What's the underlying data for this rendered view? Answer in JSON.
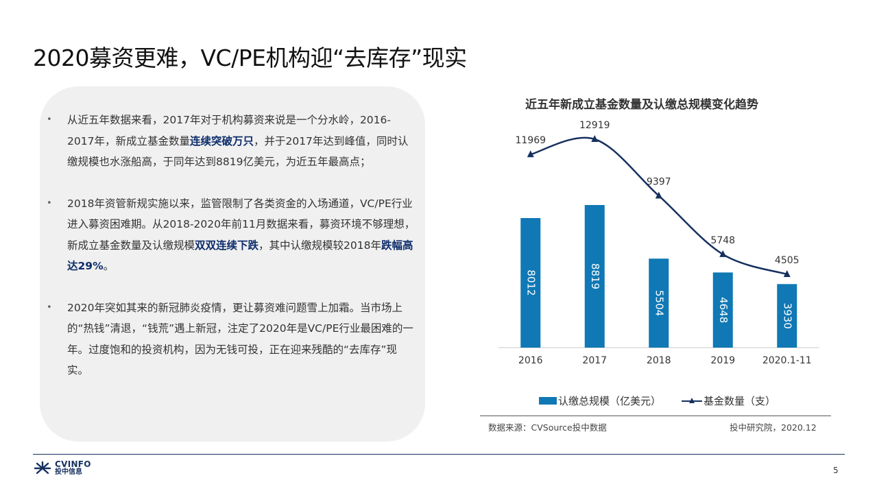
{
  "slide": {
    "title": "2020募资更难，VC/PE机构迎“去库存”现实",
    "page_number": "5"
  },
  "bullets": [
    {
      "segments": [
        {
          "text": "从近五年数据来看，2017年对于机构募资来说是一个分水岭，2016-2017年，新成立基金数量",
          "bold": false
        },
        {
          "text": "连续突破万只",
          "bold": true
        },
        {
          "text": "，并于2017年达到峰值，同时认缴规模也水涨船高，于同年达到8819亿美元，为近五年最高点；",
          "bold": false
        }
      ]
    },
    {
      "segments": [
        {
          "text": "2018年资管新规实施以来，监管限制了各类资金的入场通道，VC/PE行业进入募资困难期。从2018-2020年前11月数据来看，募资环境不够理想，新成立基金数量及认缴规模",
          "bold": false
        },
        {
          "text": "双双连续下跌",
          "bold": true
        },
        {
          "text": "，其中认缴规模较2018年",
          "bold": false
        },
        {
          "text": "跌幅高达29%",
          "bold": true
        },
        {
          "text": "。",
          "bold": false
        }
      ]
    },
    {
      "segments": [
        {
          "text": "2020年突如其来的新冠肺炎疫情，更让募资难问题雪上加霜。当市场上的“热钱”清退，“钱荒”遇上新冠，注定了2020年是VC/PE行业最困难的一年。过度饱和的投资机构，因为无钱可投，正在迎来残酷的“去库存”现实。",
          "bold": false
        }
      ]
    }
  ],
  "chart_data": {
    "type": "bar",
    "title": "近五年新成立基金数量及认缴总规模变化趋势",
    "categories": [
      "2016",
      "2017",
      "2018",
      "2019",
      "2020.1-11"
    ],
    "series": [
      {
        "name": "认缴总规模（亿美元）",
        "type": "bar",
        "values": [
          8012,
          8819,
          5504,
          4648,
          3930
        ],
        "color": "#0f78b5"
      },
      {
        "name": "基金数量（支）",
        "type": "line",
        "values": [
          11969,
          12919,
          9397,
          5748,
          4505
        ],
        "color": "#16305f"
      }
    ],
    "legend_position": "bottom",
    "grid": false,
    "source_left": "数据来源：CVSource投中数据",
    "source_right": "投中研究院，2020.12"
  },
  "logo": {
    "top_text": "CVINFO",
    "bottom_text": "投中信息",
    "color": "#16305f"
  }
}
